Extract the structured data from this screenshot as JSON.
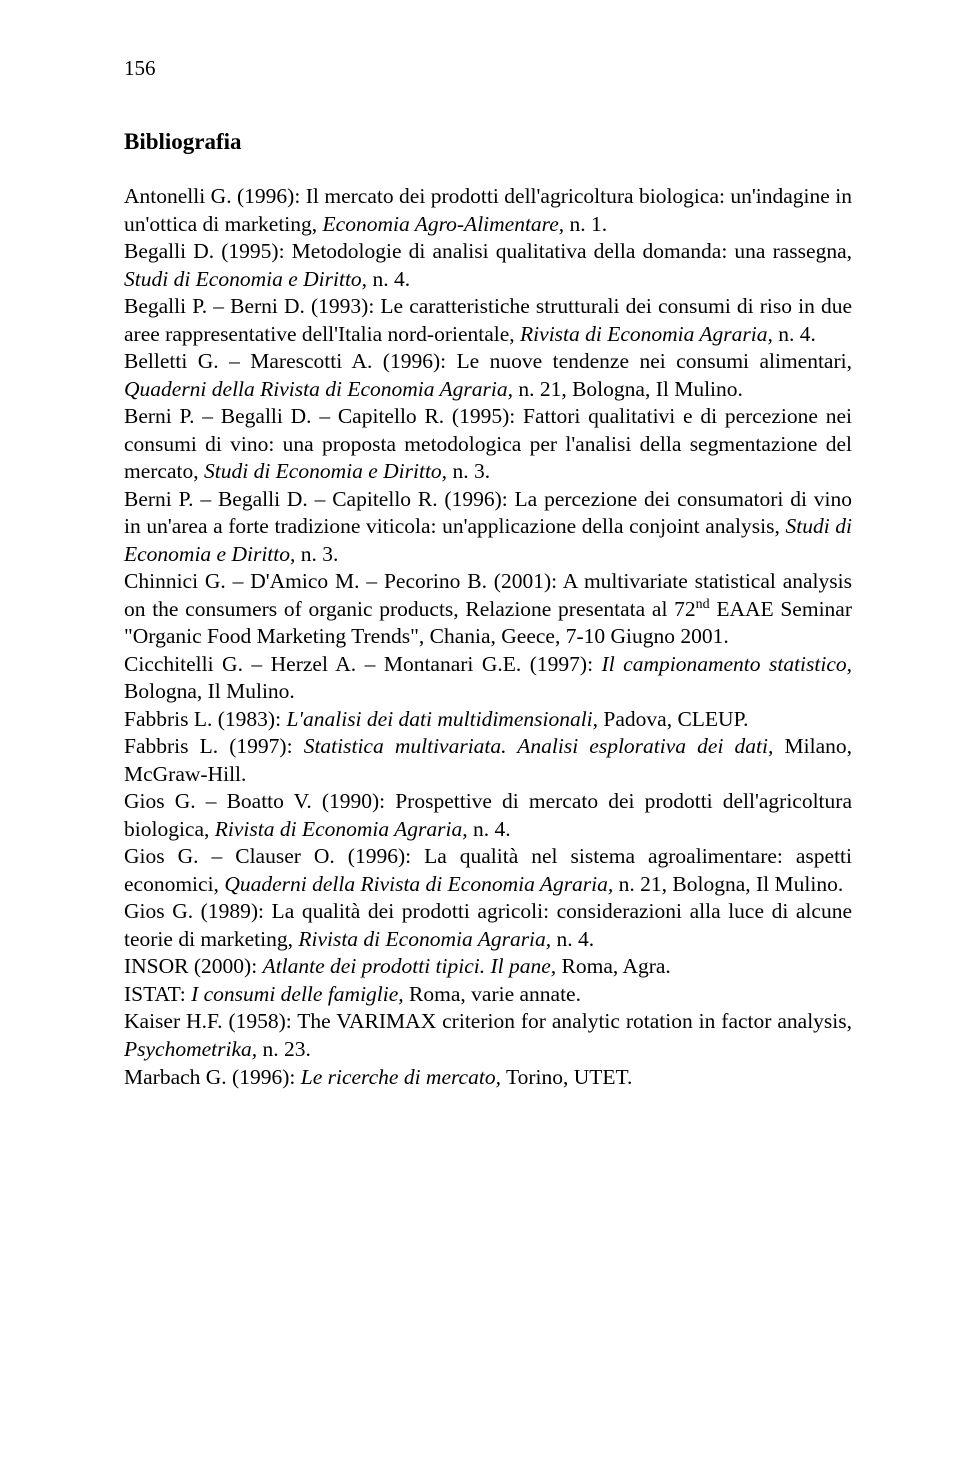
{
  "page": {
    "number": "156",
    "background_color": "#ffffff",
    "text_color": "#000000",
    "font_family": "Times New Roman",
    "body_fontsize_pt": 16,
    "heading_fontsize_pt": 17,
    "line_height": 1.28
  },
  "heading": "Bibliografia",
  "entries": [
    {
      "html": "Antonelli G. (1996): Il mercato dei prodotti dell'agricoltura biologica: un'indagine in un'ottica di marketing, <span class='italic'>Economia Agro-Alimentare,</span> n. 1."
    },
    {
      "html": "Begalli D. (1995): Metodologie di analisi qualitativa della domanda: una rassegna, <span class='italic'>Studi di Economia e Diritto,</span> n. 4."
    },
    {
      "html": "Begalli P. – Berni D. (1993): Le caratteristiche strutturali dei consumi di riso in due aree rappresentative dell'Italia nord-orientale, <span class='italic'>Rivista di Economia Agraria,</span> n. 4."
    },
    {
      "html": "Belletti G. – Marescotti A. (1996): Le nuove tendenze nei consumi alimentari, <span class='italic'>Quaderni della Rivista di Economia Agraria,</span> n. 21, Bologna, Il Mulino."
    },
    {
      "html": "Berni P. – Begalli D. – Capitello R. (1995): Fattori qualitativi e di percezione nei consumi di vino: una proposta metodologica per l'analisi della segmentazione del mercato, <span class='italic'>Studi di Economia e Diritto,</span> n. 3."
    },
    {
      "html": "Berni P. – Begalli D. – Capitello R. (1996): La percezione dei consumatori di vino in un'area a forte tradizione viticola: un'applicazione della conjoint analysis, <span class='italic'>Studi di Economia e Diritto,</span> n. 3."
    },
    {
      "html": "Chinnici G. – D'Amico M. – Pecorino B. (2001): A multivariate statistical analysis on the consumers of organic products, Relazione presentata al 72<span class='sup'>nd</span> EAAE Seminar \"Organic Food Marketing Trends\", Chania, Geece, 7-10 Giugno 2001."
    },
    {
      "html": "Cicchitelli G. – Herzel A. – Montanari G.E. (1997): <span class='italic'>Il campionamento statistico,</span> Bologna, Il Mulino."
    },
    {
      "html": "Fabbris L. (1983): <span class='italic'>L'analisi dei dati multidimensionali,</span> Padova, CLEUP."
    },
    {
      "html": "Fabbris L. (1997): <span class='italic'>Statistica multivariata. Analisi esplorativa dei dati,</span> Milano, McGraw-Hill."
    },
    {
      "html": "Gios G. – Boatto V. (1990): Prospettive di mercato dei prodotti dell'agricoltura biologica, <span class='italic'>Rivista di Economia Agraria,</span> n. 4."
    },
    {
      "html": "Gios G. – Clauser O. (1996): La qualità nel sistema agroalimentare: aspetti economici, <span class='italic'>Quaderni della Rivista di Economia Agraria,</span> n. 21, Bologna, Il Mulino."
    },
    {
      "html": "Gios G. (1989): La qualità dei prodotti agricoli: considerazioni alla luce di alcune teorie di marketing, <span class='italic'>Rivista di Economia Agraria,</span> n. 4."
    },
    {
      "html": "INSOR (2000): <span class='italic'>Atlante dei prodotti tipici. Il pane,</span> Roma, Agra."
    },
    {
      "html": "ISTAT: <span class='italic'>I consumi delle famiglie,</span> Roma, varie annate."
    },
    {
      "html": "Kaiser H.F. (1958): The VARIMAX criterion for analytic rotation in factor analysis, <span class='italic'>Psychometrika,</span> n. 23."
    },
    {
      "html": "Marbach G. (1996): <span class='italic'>Le ricerche di mercato,</span> Torino, UTET."
    }
  ]
}
